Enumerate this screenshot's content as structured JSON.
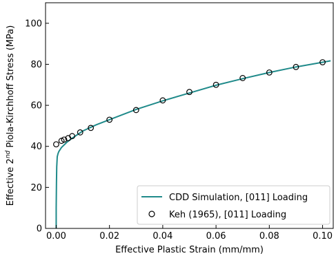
{
  "chart_data": {
    "type": "line",
    "title": "",
    "xlabel": "Effective Plastic Strain (mm/mm)",
    "ylabel": {
      "prefix": "Effective 2",
      "superscript": "nd",
      "suffix": " Piola-Kirchhoff Stress (MPa)"
    },
    "xlim": [
      -0.004,
      0.104
    ],
    "ylim": [
      0,
      110
    ],
    "x_ticks": [
      0.0,
      0.02,
      0.04,
      0.06,
      0.08,
      0.1
    ],
    "x_tick_labels": [
      "0.00",
      "0.02",
      "0.04",
      "0.06",
      "0.08",
      "0.10"
    ],
    "y_ticks": [
      0,
      20,
      40,
      60,
      80,
      100
    ],
    "y_tick_labels": [
      "0",
      "20",
      "40",
      "60",
      "80",
      "100"
    ],
    "grid": false,
    "legend_position": "bottom-right",
    "series": [
      {
        "name": "CDD Simulation, [011] Loading",
        "kind": "line",
        "color": "#1f8a8a",
        "x": [
          0.0,
          0.0,
          0.0001,
          0.0002,
          0.0004,
          0.0007,
          0.001,
          0.002,
          0.004,
          0.006,
          0.01,
          0.015,
          0.02,
          0.03,
          0.04,
          0.05,
          0.06,
          0.07,
          0.08,
          0.09,
          0.1,
          0.103
        ],
        "y": [
          0,
          10,
          22,
          30,
          35,
          36.5,
          37.5,
          39.5,
          42,
          44,
          47.5,
          50.5,
          53,
          58,
          62.2,
          66,
          69.8,
          73,
          76,
          78.7,
          81,
          81.7
        ]
      },
      {
        "name": "Keh (1965), [011] Loading",
        "kind": "scatter",
        "marker": "open-circle",
        "x": [
          0.0,
          0.002,
          0.003,
          0.0045,
          0.006,
          0.009,
          0.013,
          0.02,
          0.03,
          0.04,
          0.05,
          0.06,
          0.07,
          0.08,
          0.09,
          0.1
        ],
        "y": [
          41,
          42.7,
          43.3,
          44,
          45,
          46.8,
          49,
          53,
          57.7,
          62.4,
          66.5,
          70,
          73.3,
          76,
          78.7,
          81
        ]
      }
    ]
  }
}
